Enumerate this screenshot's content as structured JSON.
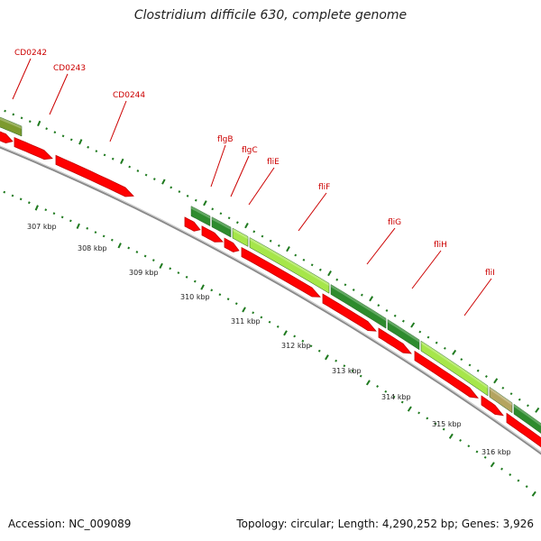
{
  "header": {
    "title": "Clostridium difficile 630, complete genome"
  },
  "footer": {
    "accession": "Accession: NC_009089",
    "stats": "Topology: circular; Length: 4,290,252 bp; Genes: 3,926"
  },
  "colors": {
    "cds": "#ff0000",
    "cds_dark": "#c40000",
    "backbone": "#8a8a8a",
    "label": "#cc0000",
    "tick": "#1f7a1f",
    "hit_dark": "#2e8b2e",
    "hit_light": "#a6e64a",
    "hit_olive": "#7d9a2e",
    "hit_tan": "#b4a460"
  },
  "genes": [
    {
      "name": "CD0242"
    },
    {
      "name": "CD0243"
    },
    {
      "name": "CD0244"
    },
    {
      "name": "flgB"
    },
    {
      "name": "flgC"
    },
    {
      "name": "fliE"
    },
    {
      "name": "fliF"
    },
    {
      "name": "fliG"
    },
    {
      "name": "fliH"
    },
    {
      "name": "fliI"
    }
  ],
  "kbp_ticks": [
    {
      "label": "307 kbp"
    },
    {
      "label": "308 kbp"
    },
    {
      "label": "309 kbp"
    },
    {
      "label": "310 kbp"
    },
    {
      "label": "311 kbp"
    },
    {
      "label": "312 kbp"
    },
    {
      "label": "313 kbp"
    },
    {
      "label": "314 kbp"
    },
    {
      "label": "315 kbp"
    },
    {
      "label": "316 kbp"
    }
  ]
}
